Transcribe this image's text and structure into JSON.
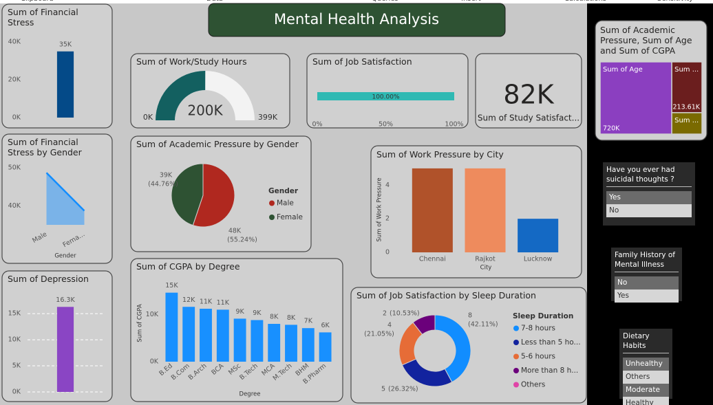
{
  "ribbon": [
    "Clipboard",
    "Data",
    "Queries",
    "Insert",
    "Calculations",
    "Sensitivity"
  ],
  "title": "Mental Health Analysis",
  "chart_data": [
    {
      "type": "bar",
      "title": "Sum of Financial Stress",
      "categories": [
        null
      ],
      "values": [
        35000
      ],
      "value_labels": [
        "35K"
      ],
      "color": "#044a88",
      "ylim": [
        0,
        40000
      ],
      "yticks": [
        {
          "value": 0,
          "label": "0K"
        },
        {
          "value": 20000,
          "label": "20K"
        },
        {
          "value": 40000,
          "label": "40K"
        }
      ],
      "grid": false
    },
    {
      "type": "area",
      "title": "Sum of Financial Stress by Gender",
      "categories": [
        "Male",
        "Fema..."
      ],
      "values": [
        48700,
        38700
      ],
      "color": "#7ab3e8",
      "line_color": "#118dff",
      "ylim": [
        35000,
        52000
      ],
      "yticks": [
        {
          "value": 40000,
          "label": "40K"
        },
        {
          "value": 50000,
          "label": "50K"
        }
      ],
      "xlabel": "Gender",
      "grid": false
    },
    {
      "type": "bar",
      "title": "Sum of Depression",
      "categories": [
        null
      ],
      "values": [
        16300
      ],
      "value_labels": [
        "16.3K"
      ],
      "color": "#8a45c4",
      "ylim": [
        0,
        17000
      ],
      "yticks": [
        {
          "value": 0,
          "label": "0K"
        },
        {
          "value": 5000,
          "label": "5K"
        },
        {
          "value": 10000,
          "label": "10K"
        },
        {
          "value": 15000,
          "label": "15K"
        }
      ],
      "grid": true
    },
    {
      "type": "gauge",
      "title": "Sum of Work/Study Hours",
      "value": 200000,
      "value_label": "200K",
      "min": 0,
      "min_label": "0K",
      "max": 399000,
      "max_label": "399K",
      "color": "#136060"
    },
    {
      "type": "bar",
      "orientation": "horizontal",
      "title": "Sum of Job Satisfaction",
      "values": [
        100
      ],
      "value_labels": [
        "100.00%"
      ],
      "color": "#2fb9b3",
      "xlim": [
        0,
        100
      ],
      "xticks": [
        {
          "value": 0,
          "label": "0%"
        },
        {
          "value": 50,
          "label": "50%"
        },
        {
          "value": 100,
          "label": "100%"
        }
      ]
    },
    {
      "type": "pie",
      "title": "Sum of Academic Pressure by Gender",
      "legend_title": "Gender",
      "categories": [
        "Male",
        "Female"
      ],
      "values": [
        48000,
        39000
      ],
      "value_labels": [
        "48K",
        "39K"
      ],
      "percents": [
        55.24,
        44.76
      ],
      "percent_labels": [
        "(55.24%)",
        "(44.76%)"
      ],
      "colors": [
        "#b0281f",
        "#2e5233"
      ]
    },
    {
      "type": "bar",
      "title": "Sum of Work Pressure by City",
      "categories": [
        "Chennai",
        "Rajkot",
        "Lucknow"
      ],
      "values": [
        5,
        5,
        2
      ],
      "colors": [
        "#b0522a",
        "#ee8b5d",
        "#1469c4"
      ],
      "ylim": [
        0,
        5.2
      ],
      "yticks": [
        0,
        2,
        4
      ],
      "xlabel": "City",
      "ylabel": "Sum of Work Pressure",
      "grid": false
    },
    {
      "type": "bar",
      "title": "Sum of CGPA by Degree",
      "categories": [
        "B.Ed",
        "B.Com",
        "B.Arch",
        "BCA",
        "MSc",
        "B.Tech",
        "MCA",
        "M.Tech",
        "BHM",
        "B.Pharm"
      ],
      "values": [
        14600,
        11600,
        11200,
        11000,
        9100,
        8800,
        8000,
        7800,
        7100,
        6200
      ],
      "value_labels": [
        "15K",
        "12K",
        "11K",
        "11K",
        "9K",
        "9K",
        "8K",
        "8K",
        "7K",
        "6K"
      ],
      "color": "#1890ff",
      "ylim": [
        0,
        16000
      ],
      "yticks": [
        {
          "value": 0,
          "label": "0K"
        },
        {
          "value": 10000,
          "label": "10K"
        }
      ],
      "xlabel": "Degree",
      "ylabel": "Sum of CGPA",
      "grid": false
    },
    {
      "type": "donut",
      "title": "Sum of Job Satisfaction by Sleep Duration",
      "legend_title": "Sleep Duration",
      "categories": [
        "7-8 hours",
        "Less than 5 ho...",
        "5-6 hours",
        "More than 8 h...",
        "Others"
      ],
      "values": [
        8,
        5,
        4,
        2,
        0
      ],
      "value_labels": [
        "8",
        "5",
        "4",
        "2",
        null
      ],
      "percents": [
        42.11,
        26.32,
        21.05,
        10.53,
        null
      ],
      "percent_labels": [
        "(42.11%)",
        "(26.32%)",
        "(21.05%)",
        "(10.53%)",
        null
      ],
      "colors": [
        "#118dff",
        "#12239e",
        "#e66c37",
        "#6b007b",
        "#e044a7"
      ]
    },
    {
      "type": "treemap",
      "title": "Sum of Academic Pressure, Sum of Age and Sum of CGPA",
      "categories": [
        "Sum of Age",
        "Sum ...",
        "Sum ..."
      ],
      "values": [
        720000,
        213610,
        90000
      ],
      "value_labels": [
        "720K",
        "213.61K",
        null
      ],
      "colors": [
        "#8b3fc0",
        "#6b1e1e",
        "#7a6a00"
      ]
    }
  ],
  "cards": [
    {
      "value": "82K",
      "label": "Sum of Study Satisfact..."
    }
  ],
  "slicers": [
    {
      "title": "Have you ever had suicidal thoughts ?",
      "options": [
        "Yes",
        "No"
      ],
      "selected": [
        true,
        false
      ]
    },
    {
      "title": "Family History of Mental Illness",
      "options": [
        "No",
        "Yes"
      ],
      "selected": [
        true,
        false
      ]
    },
    {
      "title": "Dietary Habits",
      "options": [
        "Unhealthy",
        "Others",
        "Moderate",
        "Healthy"
      ],
      "selected": [
        true,
        false,
        true,
        false
      ]
    }
  ]
}
